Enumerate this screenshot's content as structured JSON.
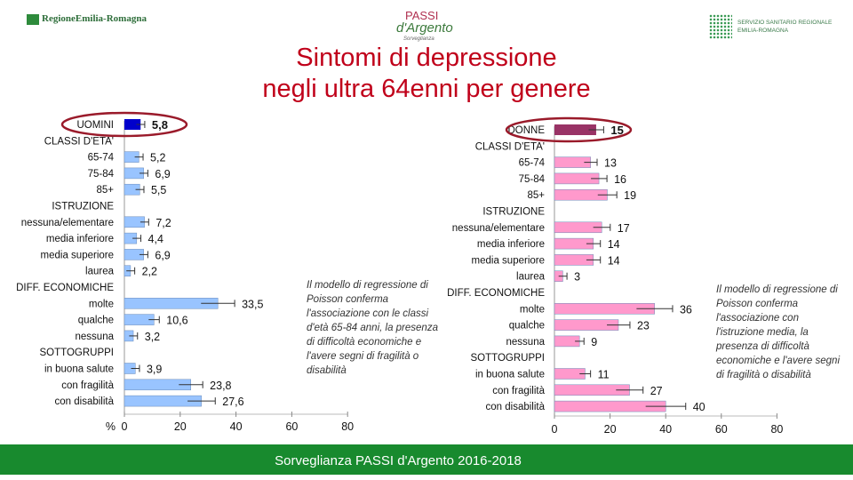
{
  "header": {
    "logo_left": "RegioneEmilia-Romagna",
    "logo_center_line1": "PASSI",
    "logo_center_line2": "d'Argento",
    "logo_center_line3": "Sorveglianza",
    "logo_right_line1": "SERVIZIO SANITARIO REGIONALE",
    "logo_right_line2": "EMILIA-ROMAGNA"
  },
  "title_line1": "Sintomi di depressione",
  "title_line2": "negli ultra 64enni per genere",
  "footer": "Sorveglianza PASSI d'Argento 2016-2018",
  "notes": {
    "men": "Il modello di regressione di Poisson conferma l'associazione con le classi d'età 65-84 anni, la presenza di difficoltà economiche e l'avere segni di fragilità o disabilità",
    "women": "Il modello di regressione di Poisson conferma l'associazione con l'istruzione media, la presenza di difficoltà economiche e l'avere segni di fragilità o disabilità"
  },
  "colors": {
    "men_total": "#0000cc",
    "men_bar": "#99c4ff",
    "women_total": "#993366",
    "women_bar": "#ff99cc",
    "highlight_ring": "#9a1a2a",
    "footer_bg": "#188a2e"
  },
  "chart_data": [
    {
      "type": "bar",
      "orientation": "horizontal",
      "title": "UOMINI",
      "unit_label": "%",
      "xlim": [
        0,
        80
      ],
      "xticks": [
        0,
        20,
        40,
        60,
        80
      ],
      "rows": [
        {
          "label": "UOMINI",
          "kind": "total",
          "value": 5.8,
          "value_label": "5,8"
        },
        {
          "label": "CLASSI D'ETA'",
          "kind": "header"
        },
        {
          "label": "65-74",
          "kind": "bar",
          "value": 5.2,
          "value_label": "5,2"
        },
        {
          "label": "75-84",
          "kind": "bar",
          "value": 6.9,
          "value_label": "6,9"
        },
        {
          "label": "85+",
          "kind": "bar",
          "value": 5.5,
          "value_label": "5,5"
        },
        {
          "label": "ISTRUZIONE",
          "kind": "header"
        },
        {
          "label": "nessuna/elementare",
          "kind": "bar",
          "value": 7.2,
          "value_label": "7,2"
        },
        {
          "label": "media inferiore",
          "kind": "bar",
          "value": 4.4,
          "value_label": "4,4"
        },
        {
          "label": "media superiore",
          "kind": "bar",
          "value": 6.9,
          "value_label": "6,9"
        },
        {
          "label": "laurea",
          "kind": "bar",
          "value": 2.2,
          "value_label": "2,2"
        },
        {
          "label": "DIFF. ECONOMICHE",
          "kind": "header"
        },
        {
          "label": "molte",
          "kind": "bar",
          "value": 33.5,
          "value_label": "33,5"
        },
        {
          "label": "qualche",
          "kind": "bar",
          "value": 10.6,
          "value_label": "10,6"
        },
        {
          "label": "nessuna",
          "kind": "bar",
          "value": 3.2,
          "value_label": "3,2"
        },
        {
          "label": "SOTTOGRUPPI",
          "kind": "header"
        },
        {
          "label": "in buona salute",
          "kind": "bar",
          "value": 3.9,
          "value_label": "3,9"
        },
        {
          "label": "con fragilità",
          "kind": "bar",
          "value": 23.8,
          "value_label": "23,8"
        },
        {
          "label": "con disabilità",
          "kind": "bar",
          "value": 27.6,
          "value_label": "27,6"
        }
      ]
    },
    {
      "type": "bar",
      "orientation": "horizontal",
      "title": "DONNE",
      "xlim": [
        0,
        80
      ],
      "xticks": [
        0,
        20,
        40,
        60,
        80
      ],
      "rows": [
        {
          "label": "DONNE",
          "kind": "total",
          "value": 15,
          "value_label": "15"
        },
        {
          "label": "CLASSI D'ETA'",
          "kind": "header"
        },
        {
          "label": "65-74",
          "kind": "bar",
          "value": 13,
          "value_label": "13"
        },
        {
          "label": "75-84",
          "kind": "bar",
          "value": 16,
          "value_label": "16"
        },
        {
          "label": "85+",
          "kind": "bar",
          "value": 19,
          "value_label": "19"
        },
        {
          "label": "ISTRUZIONE",
          "kind": "header"
        },
        {
          "label": "nessuna/elementare",
          "kind": "bar",
          "value": 17,
          "value_label": "17"
        },
        {
          "label": "media inferiore",
          "kind": "bar",
          "value": 14,
          "value_label": "14"
        },
        {
          "label": "media superiore",
          "kind": "bar",
          "value": 14,
          "value_label": "14"
        },
        {
          "label": "laurea",
          "kind": "bar",
          "value": 3,
          "value_label": "3"
        },
        {
          "label": "DIFF. ECONOMICHE",
          "kind": "header"
        },
        {
          "label": "molte",
          "kind": "bar",
          "value": 36,
          "value_label": "36"
        },
        {
          "label": "qualche",
          "kind": "bar",
          "value": 23,
          "value_label": "23"
        },
        {
          "label": "nessuna",
          "kind": "bar",
          "value": 9,
          "value_label": "9"
        },
        {
          "label": "SOTTOGRUPPI",
          "kind": "header"
        },
        {
          "label": "in buona salute",
          "kind": "bar",
          "value": 11,
          "value_label": "11"
        },
        {
          "label": "con fragilità",
          "kind": "bar",
          "value": 27,
          "value_label": "27"
        },
        {
          "label": "con disabilità",
          "kind": "bar",
          "value": 40,
          "value_label": "40"
        }
      ]
    }
  ]
}
